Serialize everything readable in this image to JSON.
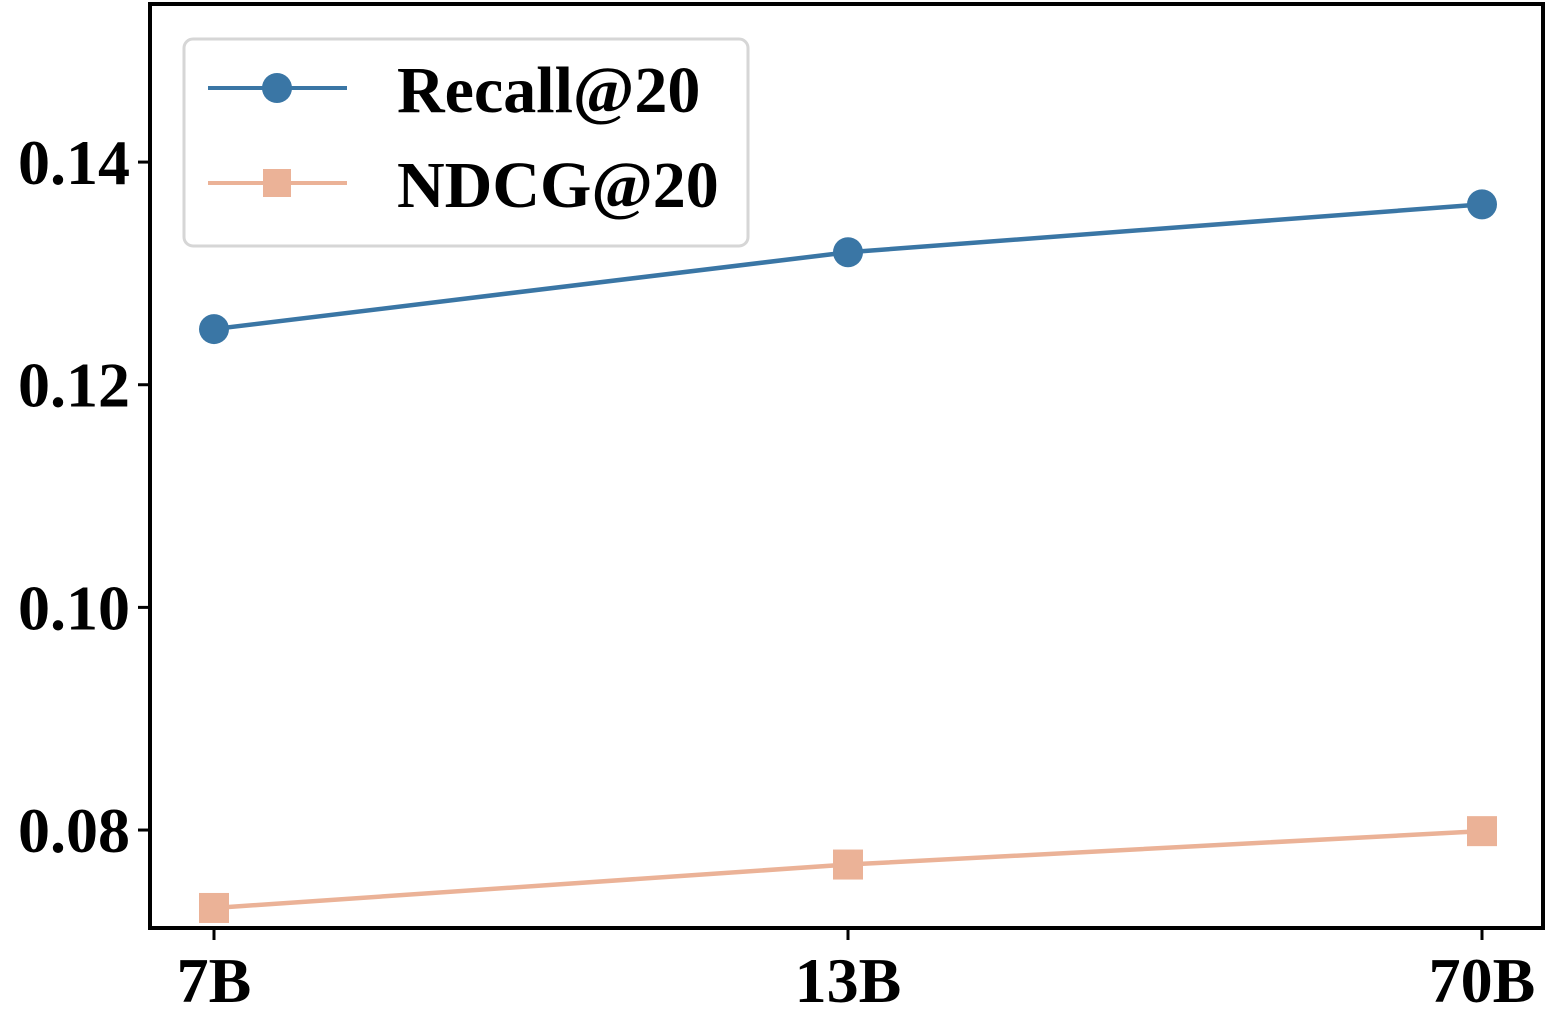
{
  "chart_data": {
    "type": "line",
    "categories": [
      "7B",
      "13B",
      "70B"
    ],
    "series": [
      {
        "name": "Recall@20",
        "values": [
          0.125,
          0.1319,
          0.1362
        ],
        "color": "#3a76a5",
        "marker": "circle"
      },
      {
        "name": "NDCG@20",
        "values": [
          0.073,
          0.0769,
          0.0799
        ],
        "color": "#ebb297",
        "marker": "square"
      }
    ],
    "ylim": [
      0.0712,
      0.1542
    ],
    "yticks": [
      0.08,
      0.1,
      0.12,
      0.14
    ],
    "ytick_labels": [
      "0.08",
      "0.10",
      "0.12",
      "0.14"
    ],
    "grid": false,
    "legend_position": "top-left"
  }
}
